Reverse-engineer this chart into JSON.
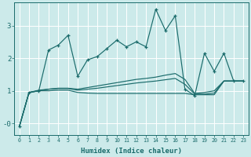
{
  "xlabel": "Humidex (Indice chaleur)",
  "bg_color": "#cceaea",
  "grid_color": "#ffffff",
  "line_color": "#1a6b6b",
  "xlim": [
    -0.5,
    23.5
  ],
  "ylim": [
    -0.35,
    3.7
  ],
  "yticks": [
    0,
    1,
    2,
    3
  ],
  "ytick_labels": [
    "-0",
    "1",
    "2",
    "3"
  ],
  "xticks": [
    0,
    1,
    2,
    3,
    4,
    5,
    6,
    7,
    8,
    9,
    10,
    11,
    12,
    13,
    14,
    15,
    16,
    17,
    18,
    19,
    20,
    21,
    22,
    23
  ],
  "line1_x": [
    0,
    1,
    2,
    3,
    4,
    5,
    6,
    7,
    8,
    9,
    10,
    11,
    12,
    13,
    14,
    15,
    16,
    17,
    18,
    19,
    20,
    21,
    22,
    23
  ],
  "line1_y": [
    -0.1,
    0.95,
    1.0,
    2.25,
    2.4,
    2.7,
    1.45,
    1.95,
    2.05,
    2.3,
    2.55,
    2.35,
    2.5,
    2.35,
    3.5,
    2.85,
    3.3,
    1.05,
    0.85,
    2.15,
    1.6,
    2.15,
    1.3,
    1.3
  ],
  "line2_x": [
    0,
    1,
    2,
    3,
    4,
    5,
    6,
    7,
    8,
    9,
    10,
    11,
    12,
    13,
    14,
    15,
    16,
    17,
    18,
    19,
    20,
    21,
    22,
    23
  ],
  "line2_y": [
    -0.1,
    0.95,
    1.0,
    1.05,
    1.08,
    1.08,
    1.05,
    1.1,
    1.15,
    1.2,
    1.25,
    1.3,
    1.35,
    1.38,
    1.42,
    1.48,
    1.53,
    1.35,
    0.92,
    0.95,
    1.0,
    1.3,
    1.3,
    1.3
  ],
  "line3_x": [
    0,
    1,
    2,
    3,
    4,
    5,
    6,
    7,
    8,
    9,
    10,
    11,
    12,
    13,
    14,
    15,
    16,
    17,
    18,
    19,
    20,
    21,
    22,
    23
  ],
  "line3_y": [
    -0.1,
    0.95,
    1.02,
    1.05,
    1.07,
    1.07,
    1.02,
    1.05,
    1.08,
    1.12,
    1.16,
    1.2,
    1.24,
    1.27,
    1.3,
    1.34,
    1.38,
    1.2,
    0.9,
    0.9,
    0.93,
    1.3,
    1.3,
    1.3
  ],
  "line4_x": [
    0,
    1,
    2,
    3,
    4,
    5,
    6,
    7,
    8,
    9,
    10,
    11,
    12,
    13,
    14,
    15,
    16,
    17,
    18,
    19,
    20,
    21,
    22,
    23
  ],
  "line4_y": [
    -0.1,
    0.95,
    1.0,
    1.0,
    1.02,
    1.02,
    0.95,
    0.93,
    0.92,
    0.92,
    0.92,
    0.92,
    0.92,
    0.92,
    0.92,
    0.92,
    0.92,
    0.92,
    0.88,
    0.88,
    0.88,
    1.3,
    1.3,
    1.3
  ]
}
